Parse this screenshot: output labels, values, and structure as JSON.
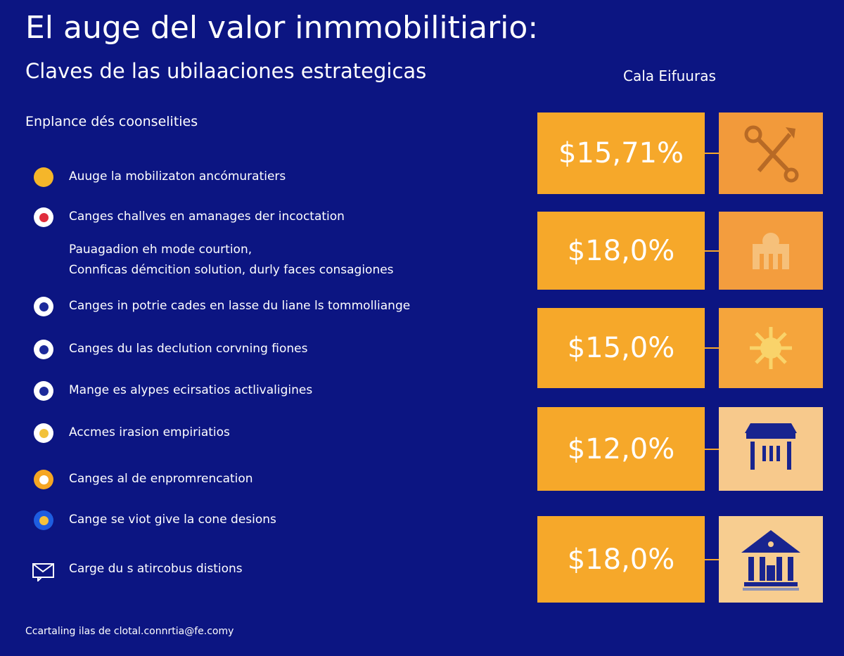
{
  "header": {
    "title": "El auge del valor inmmobilitiario:",
    "subtitle": "Claves de las ubilaaciones estrategicas",
    "side_heading": "Cala Eifuuras"
  },
  "section": {
    "heading": "Enplance dés coonselities",
    "items": [
      [
        "Auuge la mobilizaton ancómuratiers"
      ],
      [
        "Canges challves en amanages der incoctation"
      ],
      [
        "Pauagadion eh mode courtion,",
        "Connficas démcition solution, durly faces consagiones"
      ],
      [
        "Canges in potrie cades en lasse du liane ls tommolliange"
      ],
      [
        "Canges du las declution corvning fiones"
      ],
      [
        "Mange es alypes ecirsatios actlivaligines"
      ],
      [
        "Accmes irasion empiriatios"
      ],
      [
        "Canges al de enpromrencation"
      ],
      [
        "Cange se viot give la cone desions"
      ],
      [
        "Carge du s atircobus distions"
      ]
    ]
  },
  "cards": [
    "$15,71%",
    "$18,0%",
    "$15,0%",
    "$12,0%",
    "$18,0%"
  ],
  "footer": "Ccartaling ilas de clotal.connrtia@fe.comy"
}
